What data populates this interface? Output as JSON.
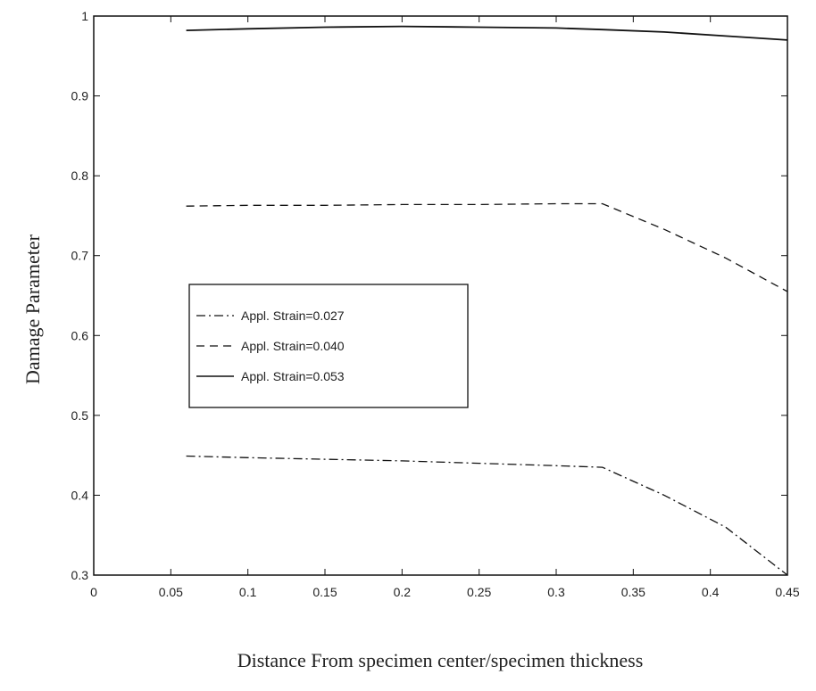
{
  "chart_data": {
    "type": "line",
    "xlabel": "Distance From specimen center/specimen thickness",
    "ylabel": "Damage Parameter",
    "xlim": [
      0,
      0.45
    ],
    "ylim": [
      0.3,
      1.0
    ],
    "xticks": [
      "0",
      "0.05",
      "0.1",
      "0.15",
      "0.2",
      "0.25",
      "0.3",
      "0.35",
      "0.4",
      "0.45"
    ],
    "yticks": [
      "0.3",
      "0.4",
      "0.5",
      "0.6",
      "0.7",
      "0.8",
      "0.9",
      "1"
    ],
    "legend_position": "center-left",
    "grid": false,
    "series": [
      {
        "name": "Appl. Strain=0.027",
        "style": "dashdot",
        "x": [
          0.06,
          0.1,
          0.15,
          0.2,
          0.25,
          0.3,
          0.33,
          0.37,
          0.41,
          0.45
        ],
        "y": [
          0.449,
          0.447,
          0.445,
          0.443,
          0.44,
          0.437,
          0.435,
          0.4,
          0.36,
          0.3
        ]
      },
      {
        "name": "Appl. Strain=0.040",
        "style": "dashed",
        "x": [
          0.06,
          0.1,
          0.15,
          0.2,
          0.25,
          0.3,
          0.33,
          0.37,
          0.41,
          0.45
        ],
        "y": [
          0.762,
          0.763,
          0.763,
          0.764,
          0.764,
          0.765,
          0.765,
          0.733,
          0.697,
          0.655
        ]
      },
      {
        "name": "Appl. Strain=0.053",
        "style": "solid",
        "x": [
          0.06,
          0.1,
          0.15,
          0.2,
          0.25,
          0.3,
          0.33,
          0.37,
          0.41,
          0.45
        ],
        "y": [
          0.982,
          0.984,
          0.986,
          0.987,
          0.986,
          0.985,
          0.983,
          0.98,
          0.975,
          0.97
        ]
      }
    ]
  }
}
